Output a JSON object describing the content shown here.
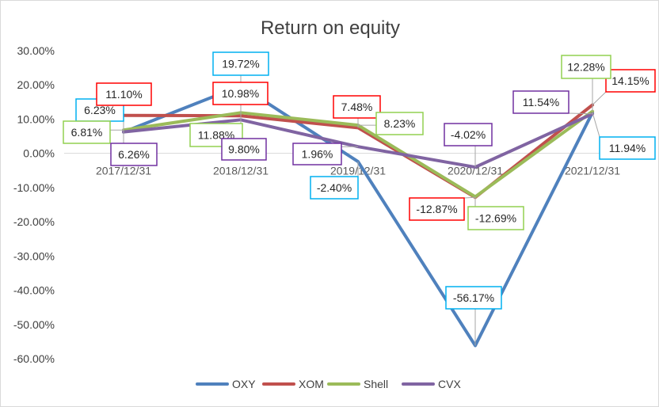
{
  "chart_data": {
    "type": "line",
    "title": "Return on equity",
    "categories": [
      "2017/12/31",
      "2018/12/31",
      "2019/12/31",
      "2020/12/31",
      "2021/12/31"
    ],
    "ylim": [
      -0.6,
      0.3
    ],
    "yticks": [
      "30.00%",
      "20.00%",
      "10.00%",
      "0.00%",
      "-10.00%",
      "-20.00%",
      "-30.00%",
      "-40.00%",
      "-50.00%",
      "-60.00%"
    ],
    "legend_position": "bottom",
    "grid": false,
    "series": [
      {
        "name": "OXY",
        "color": "#4f81bd",
        "label_border": "#00b0f0",
        "values": [
          0.0623,
          0.1972,
          -0.024,
          -0.5617,
          0.1194
        ],
        "labels": [
          "6.23%",
          "19.72%",
          "-2.40%",
          "-56.17%",
          "11.94%"
        ]
      },
      {
        "name": "XOM",
        "color": "#c0504d",
        "label_border": "#ff0000",
        "values": [
          0.111,
          0.1098,
          0.0748,
          -0.1287,
          0.1415
        ],
        "labels": [
          "11.10%",
          "10.98%",
          "7.48%",
          "-12.87%",
          "14.15%"
        ]
      },
      {
        "name": "Shell",
        "color": "#9bbb59",
        "label_border": "#92d050",
        "values": [
          0.0681,
          0.1188,
          0.0823,
          -0.1269,
          0.1228
        ],
        "labels": [
          "6.81%",
          "11.88%",
          "8.23%",
          "-12.69%",
          "12.28%"
        ]
      },
      {
        "name": "CVX",
        "color": "#8064a2",
        "label_border": "#7030a0",
        "values": [
          0.0626,
          0.098,
          0.0196,
          -0.0402,
          0.1154
        ],
        "labels": [
          "6.26%",
          "9.80%",
          "1.96%",
          "-4.02%",
          "11.54%"
        ]
      }
    ]
  }
}
